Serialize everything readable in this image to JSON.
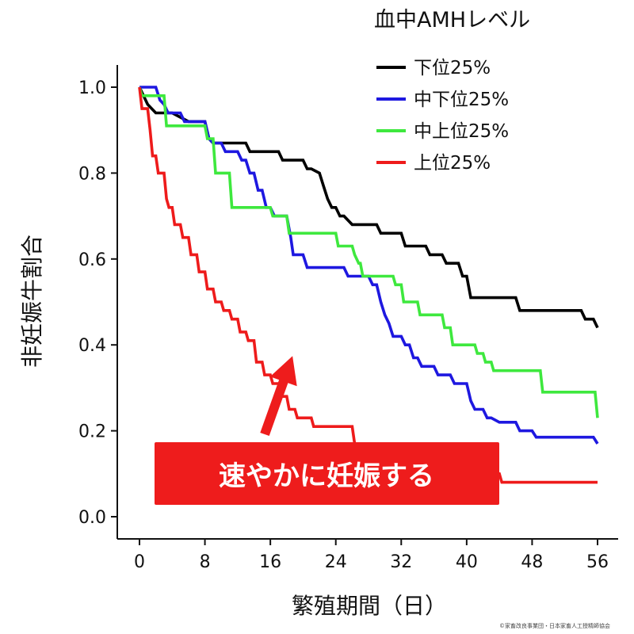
{
  "chart_data": {
    "type": "line",
    "xlabel": "繁殖期間（日）",
    "ylabel": "非妊娠牛割合",
    "xlim": [
      0,
      56
    ],
    "ylim": [
      0,
      1
    ],
    "x_ticks": [
      0,
      8,
      16,
      24,
      32,
      40,
      48,
      56
    ],
    "y_ticks": [
      0.0,
      0.2,
      0.4,
      0.6,
      0.8,
      1.0
    ],
    "y_tick_labels": [
      "0.0",
      "0.2",
      "0.4",
      "0.6",
      "0.8",
      "1.0"
    ],
    "grid": false,
    "legend_title": "血中AMHレベル",
    "legend_position": "top-right",
    "series": [
      {
        "name": "下位25%",
        "color": "#000000",
        "points": [
          [
            0,
            1.0
          ],
          [
            1,
            0.96
          ],
          [
            2,
            0.94
          ],
          [
            4,
            0.94
          ],
          [
            6,
            0.92
          ],
          [
            8,
            0.92
          ],
          [
            8.5,
            0.88
          ],
          [
            9,
            0.87
          ],
          [
            13,
            0.87
          ],
          [
            13.5,
            0.85
          ],
          [
            17,
            0.85
          ],
          [
            17.5,
            0.83
          ],
          [
            18,
            0.83
          ],
          [
            20,
            0.83
          ],
          [
            20.5,
            0.81
          ],
          [
            21,
            0.81
          ],
          [
            22,
            0.8
          ],
          [
            22.5,
            0.77
          ],
          [
            23,
            0.74
          ],
          [
            23.5,
            0.72
          ],
          [
            24,
            0.72
          ],
          [
            24.5,
            0.7
          ],
          [
            25,
            0.7
          ],
          [
            26,
            0.68
          ],
          [
            29,
            0.68
          ],
          [
            29.5,
            0.66
          ],
          [
            32,
            0.66
          ],
          [
            32.5,
            0.63
          ],
          [
            35,
            0.63
          ],
          [
            35.5,
            0.61
          ],
          [
            37,
            0.61
          ],
          [
            37.5,
            0.59
          ],
          [
            39,
            0.59
          ],
          [
            39.5,
            0.56
          ],
          [
            40,
            0.56
          ],
          [
            40.5,
            0.51
          ],
          [
            46,
            0.51
          ],
          [
            46.5,
            0.48
          ],
          [
            54,
            0.48
          ],
          [
            54.5,
            0.46
          ],
          [
            55.5,
            0.46
          ],
          [
            56,
            0.44
          ]
        ]
      },
      {
        "name": "中下位25%",
        "color": "#1e18e0",
        "points": [
          [
            0,
            1.0
          ],
          [
            2,
            1.0
          ],
          [
            2.5,
            0.97
          ],
          [
            3,
            0.96
          ],
          [
            3.5,
            0.94
          ],
          [
            5,
            0.94
          ],
          [
            5.5,
            0.92
          ],
          [
            8,
            0.92
          ],
          [
            8.5,
            0.88
          ],
          [
            9,
            0.87
          ],
          [
            10,
            0.87
          ],
          [
            10.5,
            0.85
          ],
          [
            12,
            0.85
          ],
          [
            12.5,
            0.83
          ],
          [
            13,
            0.83
          ],
          [
            13.5,
            0.8
          ],
          [
            14,
            0.8
          ],
          [
            14.5,
            0.76
          ],
          [
            15,
            0.76
          ],
          [
            15.5,
            0.72
          ],
          [
            16,
            0.72
          ],
          [
            16.5,
            0.7
          ],
          [
            18,
            0.7
          ],
          [
            18.5,
            0.65
          ],
          [
            18.8,
            0.61
          ],
          [
            20,
            0.61
          ],
          [
            20.5,
            0.58
          ],
          [
            25,
            0.58
          ],
          [
            25.5,
            0.56
          ],
          [
            28,
            0.56
          ],
          [
            28.5,
            0.54
          ],
          [
            29,
            0.54
          ],
          [
            29.5,
            0.5
          ],
          [
            30,
            0.47
          ],
          [
            30.5,
            0.45
          ],
          [
            31,
            0.42
          ],
          [
            32,
            0.42
          ],
          [
            32.5,
            0.4
          ],
          [
            33,
            0.4
          ],
          [
            33.5,
            0.37
          ],
          [
            34,
            0.37
          ],
          [
            34.5,
            0.35
          ],
          [
            36,
            0.35
          ],
          [
            36.5,
            0.33
          ],
          [
            38,
            0.33
          ],
          [
            38.5,
            0.31
          ],
          [
            40,
            0.31
          ],
          [
            40.5,
            0.27
          ],
          [
            41,
            0.25
          ],
          [
            42,
            0.25
          ],
          [
            42.5,
            0.23
          ],
          [
            43,
            0.23
          ],
          [
            44,
            0.22
          ],
          [
            46,
            0.22
          ],
          [
            46.5,
            0.2
          ],
          [
            48,
            0.2
          ],
          [
            48.5,
            0.185
          ],
          [
            55.5,
            0.185
          ],
          [
            56,
            0.17
          ]
        ]
      },
      {
        "name": "中上位25%",
        "color": "#3ee83e",
        "points": [
          [
            0,
            1.0
          ],
          [
            0.3,
            0.98
          ],
          [
            3,
            0.98
          ],
          [
            3.3,
            0.91
          ],
          [
            8,
            0.91
          ],
          [
            8.3,
            0.88
          ],
          [
            9,
            0.88
          ],
          [
            9.3,
            0.8
          ],
          [
            11,
            0.8
          ],
          [
            11.3,
            0.72
          ],
          [
            16,
            0.72
          ],
          [
            16.3,
            0.7
          ],
          [
            18,
            0.7
          ],
          [
            18.3,
            0.66
          ],
          [
            24,
            0.66
          ],
          [
            24.3,
            0.63
          ],
          [
            26,
            0.63
          ],
          [
            26.3,
            0.61
          ],
          [
            26.8,
            0.59
          ],
          [
            27,
            0.59
          ],
          [
            27.3,
            0.56
          ],
          [
            31,
            0.56
          ],
          [
            31.3,
            0.54
          ],
          [
            32,
            0.54
          ],
          [
            32.3,
            0.5
          ],
          [
            34,
            0.5
          ],
          [
            34.3,
            0.47
          ],
          [
            37,
            0.47
          ],
          [
            37.3,
            0.44
          ],
          [
            38,
            0.44
          ],
          [
            38.3,
            0.4
          ],
          [
            41,
            0.4
          ],
          [
            41.3,
            0.38
          ],
          [
            42,
            0.38
          ],
          [
            42.3,
            0.36
          ],
          [
            43,
            0.36
          ],
          [
            43.3,
            0.34
          ],
          [
            49,
            0.34
          ],
          [
            49.3,
            0.29
          ],
          [
            55.7,
            0.29
          ],
          [
            56,
            0.23
          ]
        ]
      },
      {
        "name": "上位25%",
        "color": "#ee1b1b",
        "points": [
          [
            0,
            1.0
          ],
          [
            0.3,
            0.95
          ],
          [
            1,
            0.95
          ],
          [
            1.3,
            0.9
          ],
          [
            1.6,
            0.84
          ],
          [
            2,
            0.84
          ],
          [
            2.3,
            0.8
          ],
          [
            3,
            0.8
          ],
          [
            3.3,
            0.74
          ],
          [
            3.6,
            0.72
          ],
          [
            4,
            0.72
          ],
          [
            4.3,
            0.68
          ],
          [
            5,
            0.68
          ],
          [
            5.3,
            0.65
          ],
          [
            6,
            0.65
          ],
          [
            6.3,
            0.61
          ],
          [
            7,
            0.61
          ],
          [
            7.3,
            0.57
          ],
          [
            8,
            0.57
          ],
          [
            8.3,
            0.53
          ],
          [
            9,
            0.53
          ],
          [
            9.3,
            0.5
          ],
          [
            10,
            0.5
          ],
          [
            10.3,
            0.48
          ],
          [
            11,
            0.48
          ],
          [
            11.3,
            0.46
          ],
          [
            12,
            0.46
          ],
          [
            12.3,
            0.43
          ],
          [
            13,
            0.43
          ],
          [
            13.3,
            0.41
          ],
          [
            14,
            0.41
          ],
          [
            14.3,
            0.36
          ],
          [
            15,
            0.36
          ],
          [
            15.3,
            0.33
          ],
          [
            16,
            0.33
          ],
          [
            16.3,
            0.31
          ],
          [
            17,
            0.31
          ],
          [
            17.3,
            0.28
          ],
          [
            18,
            0.28
          ],
          [
            18.3,
            0.25
          ],
          [
            19,
            0.25
          ],
          [
            19.3,
            0.23
          ],
          [
            21,
            0.23
          ],
          [
            21.3,
            0.21
          ],
          [
            26,
            0.21
          ],
          [
            26.3,
            0.17
          ],
          [
            32,
            0.17
          ],
          [
            32.3,
            0.15
          ],
          [
            36,
            0.15
          ],
          [
            36.3,
            0.13
          ],
          [
            40,
            0.13
          ],
          [
            40.3,
            0.1
          ],
          [
            44,
            0.1
          ],
          [
            44.3,
            0.08
          ],
          [
            56,
            0.08
          ]
        ]
      }
    ],
    "annotation": {
      "text": "速やかに妊娠する",
      "background_color": "#ee1c1c",
      "text_color": "#ffffff",
      "arrow_tip": [
        19,
        0.4
      ]
    }
  },
  "credit": "©家畜改良事業団・日本家畜人工授精師協会"
}
